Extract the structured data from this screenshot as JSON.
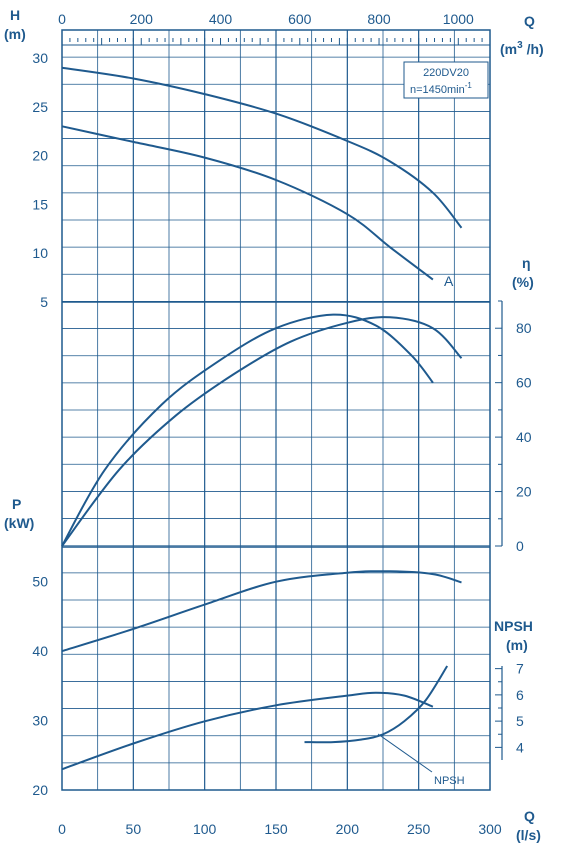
{
  "chart_data": {
    "type": "line",
    "model_label": "220DV20",
    "speed_label": "n=1450min",
    "speed_unit_exp": "-1",
    "curve_a_label": "A",
    "npsh_callout": "NPSH",
    "colors": {
      "line": "#1f5a8e",
      "grid": "#1f5a8e",
      "bg": "#ffffff"
    },
    "axes": {
      "flow_ls": {
        "name": "Q",
        "unit": "(l/s)",
        "range": [
          0,
          300
        ],
        "ticks": [
          "0",
          "50",
          "100",
          "150",
          "200",
          "250",
          "300"
        ]
      },
      "flow_m3h": {
        "name": "Q",
        "unit_pre": "(m",
        "unit_exp": "3",
        "unit_post": " /h)",
        "range": [
          0,
          1080
        ],
        "ticks": [
          "0",
          "200",
          "400",
          "600",
          "800",
          "1000"
        ]
      },
      "head": {
        "name": "H",
        "unit": "(m)",
        "range": [
          5,
          30
        ],
        "ticks": [
          "5",
          "10",
          "15",
          "20",
          "25",
          "30"
        ]
      },
      "efficiency": {
        "name": "η",
        "unit": "(%)",
        "range": [
          0,
          90
        ],
        "ticks": [
          "0",
          "20",
          "40",
          "60",
          "80"
        ]
      },
      "power": {
        "name": "P",
        "unit": "(kW)",
        "range": [
          20,
          55
        ],
        "ticks": [
          "20",
          "30",
          "40",
          "50"
        ]
      },
      "npsh": {
        "name": "NPSH",
        "unit": "(m)",
        "range": [
          3.5,
          7.5
        ],
        "ticks": [
          "4",
          "5",
          "6",
          "7"
        ]
      }
    },
    "series": [
      {
        "name": "H",
        "axis": "head",
        "x": [
          0,
          50,
          100,
          150,
          200,
          230,
          260,
          280
        ],
        "y": [
          29,
          27.9,
          26.3,
          24.3,
          21.5,
          19.4,
          16.2,
          12.6
        ]
      },
      {
        "name": "H-A",
        "axis": "head",
        "x": [
          0,
          50,
          100,
          150,
          200,
          230,
          260
        ],
        "y": [
          23,
          21.4,
          19.8,
          17.5,
          14,
          10.6,
          7.3
        ]
      },
      {
        "name": "η",
        "axis": "efficiency",
        "x": [
          0,
          30,
          70,
          110,
          150,
          190,
          220,
          245,
          260
        ],
        "y": [
          0,
          28,
          52,
          68,
          80,
          85,
          81,
          70,
          60
        ]
      },
      {
        "name": "η-A",
        "axis": "efficiency",
        "x": [
          0,
          40,
          80,
          120,
          160,
          200,
          230,
          260,
          280
        ],
        "y": [
          0,
          28,
          48,
          63,
          75,
          82,
          84,
          80,
          69
        ]
      },
      {
        "name": "P",
        "axis": "power",
        "x": [
          0,
          50,
          100,
          150,
          200,
          230,
          260,
          280
        ],
        "y": [
          40,
          43.2,
          46.7,
          50,
          51.3,
          51.5,
          51.1,
          49.9
        ]
      },
      {
        "name": "P-A",
        "axis": "power",
        "x": [
          0,
          50,
          100,
          150,
          200,
          220,
          240,
          260
        ],
        "y": [
          23,
          26.7,
          29.9,
          32.2,
          33.6,
          34,
          33.6,
          32
        ]
      },
      {
        "name": "NPSH",
        "axis": "npsh",
        "x": [
          170,
          190,
          210,
          225,
          240,
          255,
          270
        ],
        "y": [
          4.2,
          4.2,
          4.3,
          4.5,
          5,
          5.8,
          7.1
        ]
      }
    ]
  }
}
